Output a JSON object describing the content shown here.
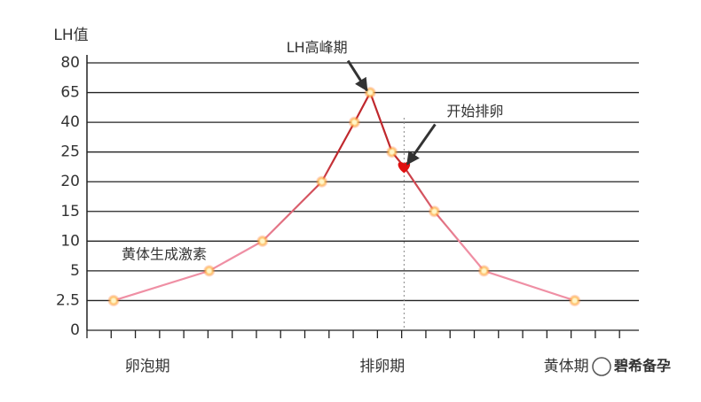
{
  "chart_data": {
    "type": "line",
    "y_label": "LH值",
    "x": [
      1.1,
      5.05,
      7.25,
      9.7,
      11.05,
      11.7,
      12.6,
      13.1,
      14.35,
      16.4,
      20.15
    ],
    "series": [
      {
        "name": "黄体生成激素",
        "color": "#c0282d",
        "low_color": "#ef8fa4",
        "values": [
          2.5,
          5,
          10,
          20,
          40,
          65,
          25,
          22.5,
          15,
          5,
          2.5
        ]
      }
    ],
    "highlight_index": 7,
    "xlim": [
      0,
      22.8
    ],
    "xticks": [
      0,
      1,
      2,
      3,
      4,
      5,
      6,
      7,
      8,
      9,
      10,
      11,
      12,
      13,
      14,
      15,
      16,
      17,
      18,
      19,
      20,
      21,
      22
    ],
    "ylim": [
      0,
      80
    ],
    "yticks": [
      0,
      2.5,
      5,
      10,
      15,
      20,
      25,
      40,
      65,
      80
    ],
    "y_scale": "tick-spaced",
    "grid": true,
    "phases": [
      {
        "label": "卵泡期",
        "x": 2.5
      },
      {
        "label": "排卵期",
        "x": 12.2
      },
      {
        "label": "黄体期",
        "x": 19.8
      }
    ],
    "ovulation_x": 13.1,
    "annotations": [
      {
        "text": "LH高峰期",
        "target": 5
      },
      {
        "text": "开始排卵",
        "target": 7
      }
    ],
    "watermark": "碧希备孕"
  }
}
